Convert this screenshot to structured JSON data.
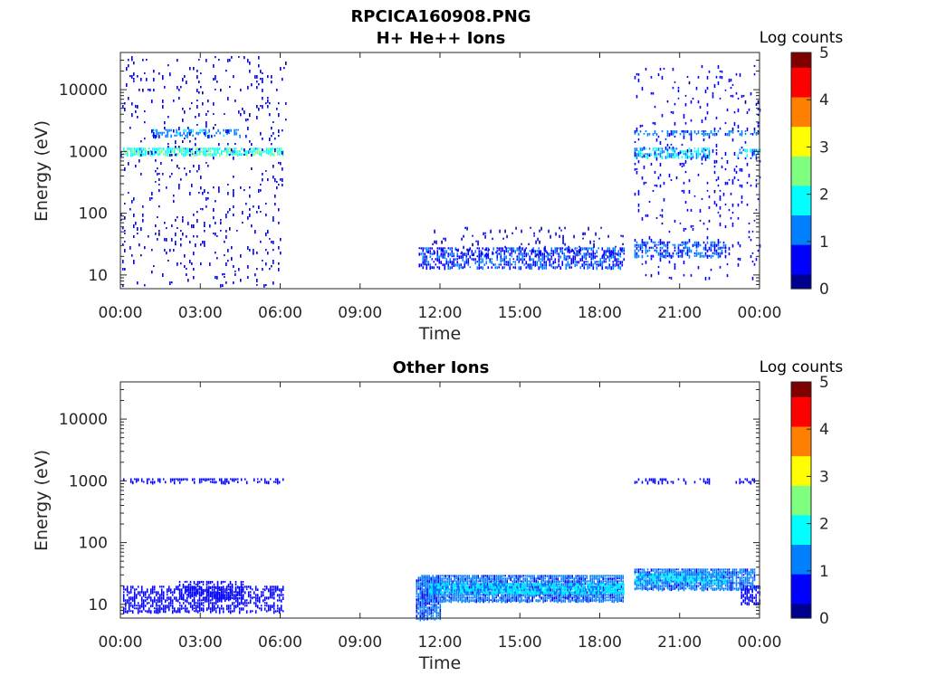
{
  "figure": {
    "title": "RPCICA160908.PNG"
  },
  "colormap": [
    "#00008f",
    "#0000ff",
    "#007fff",
    "#00ffff",
    "#7fff7f",
    "#ffff00",
    "#ff7f00",
    "#ff0000",
    "#7f0000"
  ],
  "chart_data": [
    {
      "type": "heatmap",
      "title": "H+ He++ Ions",
      "xlabel": "Time",
      "ylabel": "Energy (eV)",
      "x_ticks": [
        "00:00",
        "03:00",
        "06:00",
        "09:00",
        "12:00",
        "15:00",
        "18:00",
        "21:00",
        "00:00"
      ],
      "x_range_hours": [
        0,
        24
      ],
      "y_scale": "log",
      "y_ticks": [
        10,
        100,
        1000,
        10000
      ],
      "y_tick_labels": [
        "10",
        "100",
        "1000",
        "10000"
      ],
      "y_range": [
        6,
        40000
      ],
      "colorbar": {
        "label": "Log counts",
        "range": [
          0,
          5
        ],
        "ticks": [
          "0",
          "1",
          "2",
          "3",
          "4",
          "5"
        ]
      },
      "features": [
        {
          "t_start": 0.1,
          "t_end": 6.1,
          "e_low": 900,
          "e_high": 1150,
          "log_counts": 2.0,
          "density": 0.8
        },
        {
          "t_start": 1.2,
          "t_end": 4.5,
          "e_low": 1800,
          "e_high": 2300,
          "log_counts": 1.4,
          "density": 0.45
        },
        {
          "t_start": 0.0,
          "t_end": 6.2,
          "e_low": 7,
          "e_high": 35000,
          "log_counts": 0.4,
          "density": 0.06
        },
        {
          "t_start": 11.2,
          "t_end": 18.9,
          "e_low": 13,
          "e_high": 28,
          "log_counts": 0.9,
          "density": 0.55
        },
        {
          "t_start": 11.5,
          "t_end": 18.9,
          "e_low": 20,
          "e_high": 60,
          "log_counts": 0.4,
          "density": 0.08
        },
        {
          "t_start": 19.3,
          "t_end": 22.1,
          "e_low": 800,
          "e_high": 1150,
          "log_counts": 1.6,
          "density": 0.65
        },
        {
          "t_start": 19.3,
          "t_end": 24.0,
          "e_low": 1800,
          "e_high": 2200,
          "log_counts": 1.2,
          "density": 0.4
        },
        {
          "t_start": 23.1,
          "t_end": 24.0,
          "e_low": 850,
          "e_high": 1100,
          "log_counts": 1.4,
          "density": 0.5
        },
        {
          "t_start": 19.3,
          "t_end": 22.7,
          "e_low": 21,
          "e_high": 35,
          "log_counts": 1.0,
          "density": 0.5
        },
        {
          "t_start": 19.3,
          "t_end": 24.0,
          "e_low": 7,
          "e_high": 25000,
          "log_counts": 0.4,
          "density": 0.06
        }
      ]
    },
    {
      "type": "heatmap",
      "title": "Other Ions",
      "xlabel": "Time",
      "ylabel": "Energy (eV)",
      "x_ticks": [
        "00:00",
        "03:00",
        "06:00",
        "09:00",
        "12:00",
        "15:00",
        "18:00",
        "21:00",
        "00:00"
      ],
      "x_range_hours": [
        0,
        24
      ],
      "y_scale": "log",
      "y_ticks": [
        10,
        100,
        1000,
        10000
      ],
      "y_tick_labels": [
        "10",
        "100",
        "1000",
        "10000"
      ],
      "y_range": [
        6,
        40000
      ],
      "colorbar": {
        "label": "Log counts",
        "range": [
          0,
          5
        ],
        "ticks": [
          "0",
          "1",
          "2",
          "3",
          "4",
          "5"
        ]
      },
      "features": [
        {
          "t_start": 0.1,
          "t_end": 6.1,
          "e_low": 8,
          "e_high": 20,
          "log_counts": 0.5,
          "density": 0.55
        },
        {
          "t_start": 2.2,
          "t_end": 4.6,
          "e_low": 12,
          "e_high": 24,
          "log_counts": 0.6,
          "density": 0.6
        },
        {
          "t_start": 0.1,
          "t_end": 6.1,
          "e_low": 900,
          "e_high": 1100,
          "log_counts": 0.6,
          "density": 0.5
        },
        {
          "t_start": 11.1,
          "t_end": 12.0,
          "e_low": 6,
          "e_high": 28,
          "log_counts": 1.0,
          "density": 0.9
        },
        {
          "t_start": 11.3,
          "t_end": 18.9,
          "e_low": 11,
          "e_high": 30,
          "log_counts": 1.1,
          "density": 0.95
        },
        {
          "t_start": 11.6,
          "t_end": 18.9,
          "e_low": 15,
          "e_high": 22,
          "log_counts": 1.7,
          "density": 0.9
        },
        {
          "t_start": 19.3,
          "t_end": 23.8,
          "e_low": 18,
          "e_high": 38,
          "log_counts": 1.1,
          "density": 0.9
        },
        {
          "t_start": 19.3,
          "t_end": 22.7,
          "e_low": 22,
          "e_high": 32,
          "log_counts": 1.6,
          "density": 0.85
        },
        {
          "t_start": 23.3,
          "t_end": 24.0,
          "e_low": 10,
          "e_high": 20,
          "log_counts": 0.7,
          "density": 0.6
        },
        {
          "t_start": 19.3,
          "t_end": 22.1,
          "e_low": 900,
          "e_high": 1100,
          "log_counts": 0.5,
          "density": 0.45
        },
        {
          "t_start": 23.1,
          "t_end": 24.0,
          "e_low": 900,
          "e_high": 1100,
          "log_counts": 0.5,
          "density": 0.4
        }
      ]
    }
  ]
}
